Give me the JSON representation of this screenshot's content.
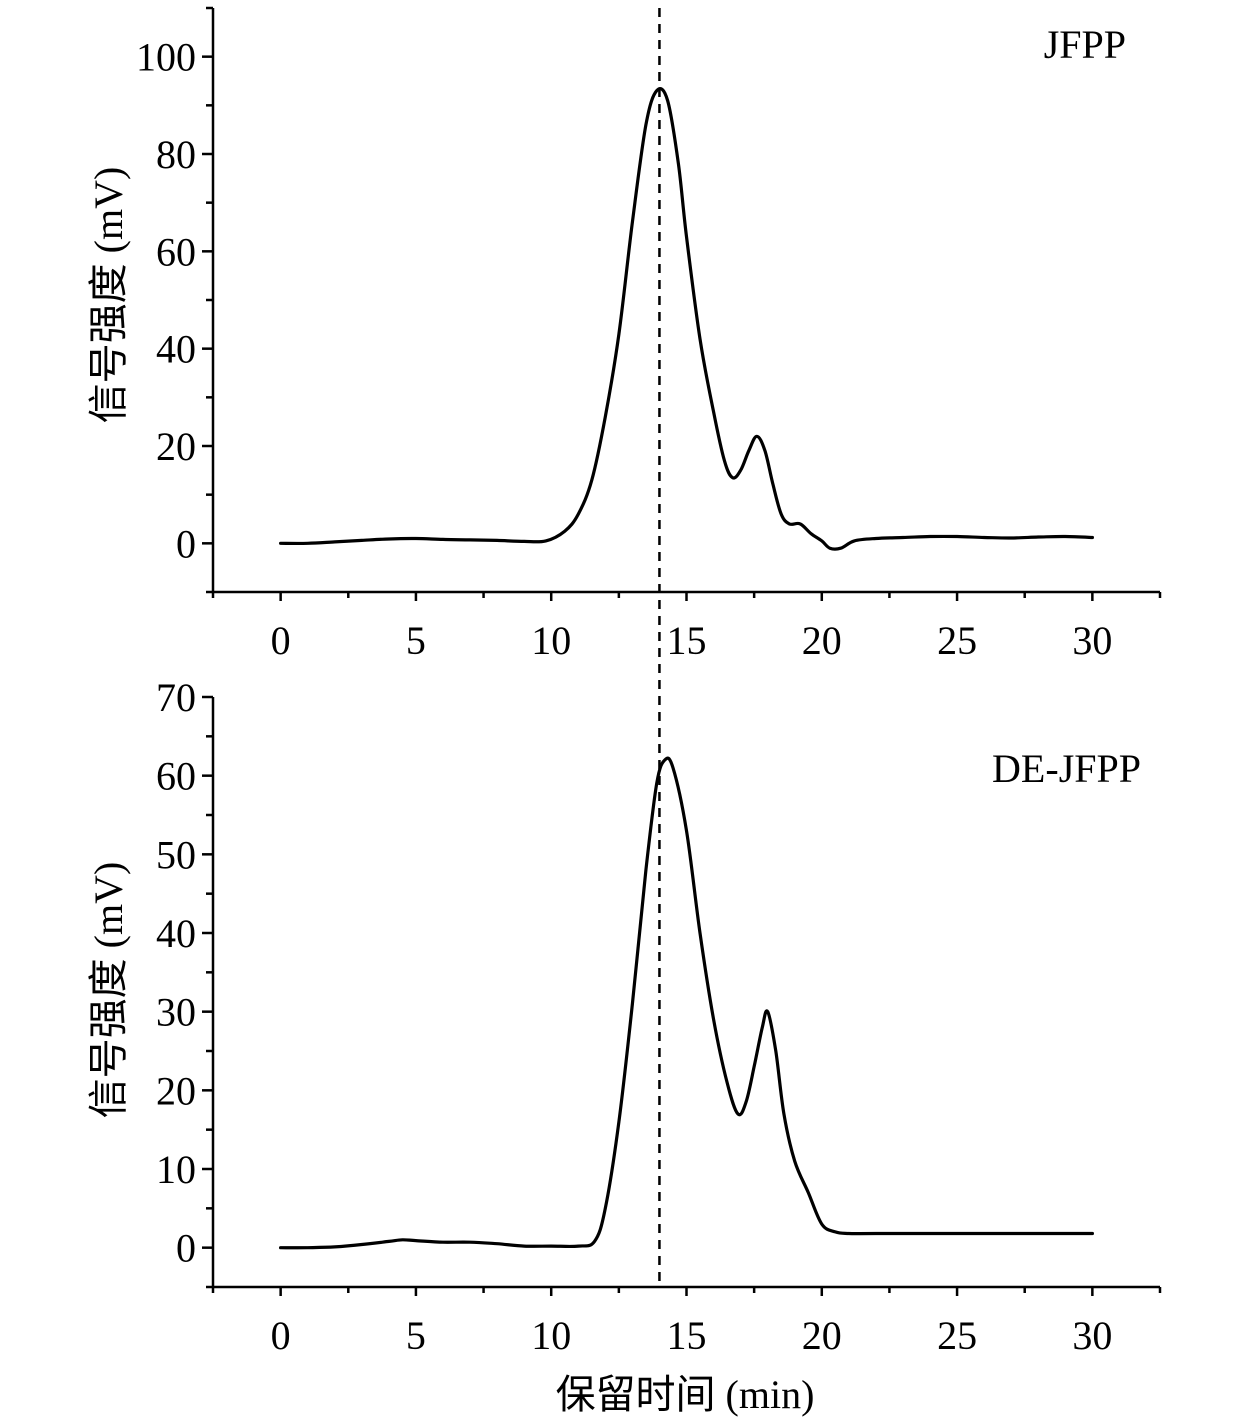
{
  "chart_data": [
    {
      "type": "line",
      "series_label": "JFPP",
      "ylabel": "信号强度 (mV)",
      "xlabel": "",
      "xlim": [
        -2.5,
        32.5
      ],
      "ylim": [
        -10,
        110
      ],
      "xticks": [
        0,
        5,
        10,
        15,
        20,
        25,
        30
      ],
      "yticks": [
        0,
        20,
        40,
        60,
        80,
        100
      ],
      "reference_line_x": 14,
      "series": [
        {
          "name": "JFPP",
          "x": [
            0,
            1,
            2,
            3,
            4,
            5,
            6,
            7,
            8,
            9,
            9.8,
            10.5,
            11,
            11.5,
            12,
            12.5,
            13,
            13.5,
            13.9,
            14.3,
            14.7,
            15,
            15.5,
            16,
            16.4,
            16.7,
            17,
            17.3,
            17.6,
            17.9,
            18.2,
            18.5,
            18.8,
            19.2,
            19.6,
            20.0,
            20.3,
            20.7,
            21.2,
            22,
            23,
            24,
            25,
            26,
            27,
            28,
            29,
            30
          ],
          "y": [
            0,
            0,
            0.3,
            0.6,
            0.9,
            1,
            0.8,
            0.7,
            0.6,
            0.4,
            0.5,
            2.5,
            6,
            13,
            26,
            43,
            66,
            86,
            93,
            91,
            78,
            63,
            42,
            27,
            17,
            13.5,
            15,
            19,
            22,
            19,
            12,
            6,
            4,
            4,
            2,
            0.5,
            -1,
            -1,
            0.5,
            1,
            1.2,
            1.4,
            1.4,
            1.2,
            1.1,
            1.3,
            1.4,
            1.2
          ]
        }
      ]
    },
    {
      "type": "line",
      "series_label": "DE-JFPP",
      "ylabel": "信号强度 (mV)",
      "xlabel": "保留时间 (min)",
      "xlim": [
        -2.5,
        32.5
      ],
      "ylim": [
        -5,
        70
      ],
      "xticks": [
        0,
        5,
        10,
        15,
        20,
        25,
        30
      ],
      "yticks": [
        0,
        10,
        20,
        30,
        40,
        50,
        60,
        70
      ],
      "reference_line_x": 14,
      "series": [
        {
          "name": "DE-JFPP",
          "x": [
            0,
            1,
            2,
            3,
            4,
            4.5,
            5,
            6,
            7,
            8,
            9,
            10,
            11,
            11.6,
            12,
            12.5,
            13,
            13.5,
            13.9,
            14.2,
            14.5,
            15,
            15.5,
            16,
            16.5,
            16.9,
            17.2,
            17.5,
            17.8,
            18.0,
            18.3,
            18.6,
            19,
            19.5,
            20,
            20.5,
            21,
            22,
            25,
            28,
            30
          ],
          "y": [
            0,
            0,
            0.1,
            0.4,
            0.8,
            1,
            0.9,
            0.7,
            0.7,
            0.5,
            0.2,
            0.2,
            0.2,
            0.8,
            5,
            16,
            31,
            48,
            59,
            62,
            61,
            53,
            40,
            29,
            21,
            17,
            18.5,
            23,
            28,
            30,
            25,
            17,
            11,
            7,
            3,
            2,
            1.8,
            1.8,
            1.8,
            1.8,
            1.8
          ]
        }
      ]
    }
  ]
}
